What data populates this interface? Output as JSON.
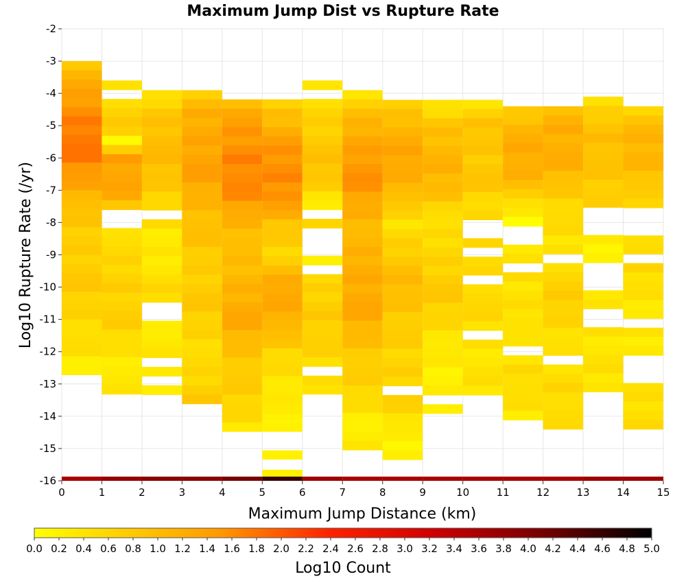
{
  "chart_data": {
    "type": "heatmap",
    "title": "Maximum Jump Dist vs Rupture Rate",
    "xlabel": "Maximum Jump Distance (km)",
    "ylabel": "Log10 Rupture Rate (/yr)",
    "xlim": [
      0,
      15
    ],
    "ylim": [
      -16,
      -2
    ],
    "x_ticks": [
      "0",
      "1",
      "2",
      "3",
      "4",
      "5",
      "6",
      "7",
      "8",
      "9",
      "10",
      "11",
      "12",
      "13",
      "14",
      "15"
    ],
    "y_ticks": [
      "-16",
      "-15",
      "-14",
      "-13",
      "-12",
      "-11",
      "-10",
      "-9",
      "-8",
      "-7",
      "-6",
      "-5",
      "-4",
      "-3",
      "-2"
    ],
    "grid": true,
    "bin_width_x": 1,
    "bin_height_y": 0.2857,
    "colorbar": {
      "label": "Log10 Count",
      "min": 0.0,
      "max": 5.0,
      "ticks": [
        "0.0",
        "0.2",
        "0.4",
        "0.6",
        "0.8",
        "1.0",
        "1.2",
        "1.4",
        "1.6",
        "1.8",
        "2.0",
        "2.2",
        "2.4",
        "2.6",
        "2.8",
        "3.0",
        "3.2",
        "3.4",
        "3.6",
        "3.8",
        "4.0",
        "4.2",
        "4.4",
        "4.6",
        "4.8",
        "5.0"
      ],
      "colors": [
        "#ffff00",
        "#ff8800",
        "#ff0000",
        "#cc0000",
        "#000000"
      ]
    },
    "columns": [
      {
        "x": 0,
        "y_top": -3.0,
        "profile": [
          [
            -3.0,
            0.8
          ],
          [
            -3.4,
            1.1
          ],
          [
            -4.0,
            1.3
          ],
          [
            -4.6,
            1.6
          ],
          [
            -5.3,
            1.8
          ],
          [
            -5.8,
            1.75
          ],
          [
            -6.5,
            1.5
          ],
          [
            -7.2,
            1.1
          ],
          [
            -7.8,
            0.8
          ],
          [
            -8.7,
            0.7
          ],
          [
            -9.6,
            0.8
          ],
          [
            -10.2,
            0.7
          ],
          [
            -11.0,
            0.6
          ],
          [
            -12.0,
            0.4
          ],
          [
            -12.7,
            0.2
          ]
        ]
      },
      {
        "x": 1,
        "y_top": -3.6,
        "profile": [
          [
            -3.6,
            0.4
          ],
          [
            -4.3,
            0.6
          ],
          [
            -5.0,
            0.8
          ],
          [
            -5.5,
            0.1
          ],
          [
            -6.0,
            1.4
          ],
          [
            -7.0,
            1.3
          ],
          [
            -7.8,
            0.6
          ],
          [
            -8.8,
            0.5
          ],
          [
            -10.0,
            0.7
          ],
          [
            -11.0,
            0.7
          ],
          [
            -12.0,
            0.4
          ],
          [
            -13.0,
            0.3
          ],
          [
            -13.3,
            0.3
          ]
        ]
      },
      {
        "x": 2,
        "y_top": -3.9,
        "profile": [
          [
            -3.9,
            0.2
          ],
          [
            -4.5,
            0.8
          ],
          [
            -5.5,
            1.0
          ],
          [
            -6.5,
            0.9
          ],
          [
            -7.5,
            0.6
          ],
          [
            -8.5,
            0.3
          ],
          [
            -9.5,
            0.4
          ],
          [
            -10.5,
            0.6
          ],
          [
            -11.5,
            0.3
          ],
          [
            -12.5,
            0.3
          ],
          [
            -13.2,
            0.4
          ]
        ]
      },
      {
        "x": 3,
        "y_top": -3.9,
        "profile": [
          [
            -3.9,
            0.6
          ],
          [
            -4.5,
            1.1
          ],
          [
            -5.5,
            1.3
          ],
          [
            -6.3,
            1.4
          ],
          [
            -7.3,
            1.1
          ],
          [
            -8.3,
            0.9
          ],
          [
            -9.3,
            0.7
          ],
          [
            -10.3,
            0.8
          ],
          [
            -11.5,
            0.6
          ],
          [
            -12.5,
            0.5
          ],
          [
            -13.6,
            0.8
          ]
        ]
      },
      {
        "x": 4,
        "y_top": -3.9,
        "profile": [
          [
            -3.9,
            0.7
          ],
          [
            -4.6,
            1.3
          ],
          [
            -5.5,
            1.5
          ],
          [
            -6.2,
            1.7
          ],
          [
            -7.0,
            1.6
          ],
          [
            -8.0,
            1.1
          ],
          [
            -9.0,
            0.9
          ],
          [
            -10.0,
            1.1
          ],
          [
            -10.8,
            1.3
          ],
          [
            -12.0,
            0.9
          ],
          [
            -13.0,
            0.7
          ],
          [
            -13.8,
            0.6
          ],
          [
            -14.4,
            0.4
          ]
        ]
      },
      {
        "x": 5,
        "y_top": -3.9,
        "profile": [
          [
            -3.9,
            0.3
          ],
          [
            -4.6,
            0.9
          ],
          [
            -5.5,
            1.4
          ],
          [
            -6.4,
            1.6
          ],
          [
            -7.2,
            1.6
          ],
          [
            -8.0,
            0.9
          ],
          [
            -9.0,
            0.6
          ],
          [
            -10.0,
            1.3
          ],
          [
            -11.0,
            1.2
          ],
          [
            -12.0,
            0.6
          ],
          [
            -13.0,
            0.4
          ],
          [
            -14.0,
            0.2
          ],
          [
            -14.4,
            0.2
          ]
        ]
      },
      {
        "x": 6,
        "y_top": -3.6,
        "profile": [
          [
            -3.6,
            0.3
          ],
          [
            -4.5,
            0.6
          ],
          [
            -5.5,
            0.8
          ],
          [
            -6.5,
            0.9
          ],
          [
            -7.5,
            0.3
          ],
          [
            -8.0,
            0.5
          ],
          [
            -9.0,
            0.3
          ],
          [
            -10.0,
            0.6
          ],
          [
            -11.0,
            0.8
          ],
          [
            -12.0,
            0.6
          ],
          [
            -12.8,
            0.4
          ],
          [
            -13.3,
            0.6
          ]
        ]
      },
      {
        "x": 7,
        "y_top": -3.9,
        "profile": [
          [
            -3.9,
            0.4
          ],
          [
            -4.6,
            0.9
          ],
          [
            -5.5,
            1.3
          ],
          [
            -6.5,
            1.6
          ],
          [
            -7.5,
            1.2
          ],
          [
            -8.5,
            1.0
          ],
          [
            -9.5,
            1.2
          ],
          [
            -10.5,
            1.3
          ],
          [
            -11.5,
            1.0
          ],
          [
            -12.5,
            0.7
          ],
          [
            -13.2,
            0.6
          ],
          [
            -14.5,
            0.2
          ],
          [
            -15.0,
            0.3
          ]
        ]
      },
      {
        "x": 8,
        "y_top": -4.2,
        "profile": [
          [
            -4.2,
            0.6
          ],
          [
            -5.0,
            1.1
          ],
          [
            -6.0,
            1.3
          ],
          [
            -7.0,
            1.1
          ],
          [
            -8.0,
            0.4
          ],
          [
            -9.0,
            0.8
          ],
          [
            -10.0,
            1.0
          ],
          [
            -11.0,
            0.8
          ],
          [
            -12.0,
            0.6
          ],
          [
            -13.0,
            0.7
          ],
          [
            -13.4,
            0.7
          ],
          [
            -14.7,
            0.2
          ],
          [
            -15.3,
            0.3
          ]
        ]
      },
      {
        "x": 9,
        "y_top": -4.2,
        "profile": [
          [
            -4.2,
            0.2
          ],
          [
            -5.0,
            0.9
          ],
          [
            -6.0,
            1.1
          ],
          [
            -7.0,
            1.0
          ],
          [
            -8.0,
            0.4
          ],
          [
            -9.0,
            0.6
          ],
          [
            -10.0,
            0.8
          ],
          [
            -11.0,
            0.6
          ],
          [
            -12.0,
            0.3
          ],
          [
            -12.8,
            0.2
          ],
          [
            -13.8,
            0.3
          ]
        ]
      },
      {
        "x": 10,
        "y_top": -4.2,
        "profile": [
          [
            -4.2,
            0.3
          ],
          [
            -5.0,
            0.9
          ],
          [
            -6.0,
            0.8
          ],
          [
            -6.5,
            0.9
          ],
          [
            -7.5,
            0.5
          ],
          [
            -9.0,
            0.6
          ],
          [
            -10.3,
            0.6
          ],
          [
            -11.0,
            0.5
          ],
          [
            -12.0,
            0.4
          ],
          [
            -13.0,
            0.4
          ],
          [
            -13.3,
            0.4
          ]
        ]
      },
      {
        "x": 11,
        "y_top": -4.4,
        "profile": [
          [
            -4.4,
            0.6
          ],
          [
            -5.0,
            1.1
          ],
          [
            -6.0,
            1.2
          ],
          [
            -6.8,
            1.1
          ],
          [
            -7.5,
            0.3
          ],
          [
            -8.0,
            0.1
          ],
          [
            -9.0,
            0.5
          ],
          [
            -10.0,
            0.4
          ],
          [
            -11.0,
            0.5
          ],
          [
            -12.0,
            0.2
          ],
          [
            -12.7,
            0.6
          ],
          [
            -14.1,
            0.3
          ]
        ]
      },
      {
        "x": 12,
        "y_top": -4.4,
        "profile": [
          [
            -4.4,
            0.9
          ],
          [
            -5.0,
            1.2
          ],
          [
            -6.0,
            1.2
          ],
          [
            -6.8,
            0.9
          ],
          [
            -7.5,
            0.6
          ],
          [
            -8.5,
            0.4
          ],
          [
            -9.5,
            0.6
          ],
          [
            -10.5,
            0.7
          ],
          [
            -11.5,
            0.5
          ],
          [
            -12.3,
            0.4
          ],
          [
            -13.3,
            0.6
          ],
          [
            -14.4,
            0.4
          ]
        ]
      },
      {
        "x": 13,
        "y_top": -4.1,
        "profile": [
          [
            -4.1,
            0.3
          ],
          [
            -4.8,
            0.8
          ],
          [
            -5.5,
            1.0
          ],
          [
            -6.5,
            0.8
          ],
          [
            -7.3,
            0.7
          ],
          [
            -8.5,
            0.2
          ],
          [
            -10.5,
            0.3
          ],
          [
            -11.0,
            0.4
          ],
          [
            -11.8,
            0.4
          ],
          [
            -13.3,
            0.4
          ]
        ]
      },
      {
        "x": 14,
        "y_top": -4.4,
        "profile": [
          [
            -4.4,
            0.6
          ],
          [
            -5.0,
            1.0
          ],
          [
            -6.0,
            1.1
          ],
          [
            -7.0,
            0.8
          ],
          [
            -7.5,
            0.4
          ],
          [
            -8.5,
            0.6
          ],
          [
            -9.5,
            0.5
          ],
          [
            -10.5,
            0.4
          ],
          [
            -11.5,
            0.3
          ],
          [
            -14.4,
            0.5
          ]
        ]
      }
    ],
    "holes": [
      [
        0,
        -12.7,
        -13.1
      ],
      [
        1,
        -4.0,
        -4.15
      ],
      [
        1,
        -7.7,
        -8.3
      ],
      [
        2,
        -7.7,
        -8.0
      ],
      [
        2,
        -10.5,
        -11.0
      ],
      [
        2,
        -12.1,
        -12.4
      ],
      [
        2,
        -12.7,
        -13.0
      ],
      [
        4,
        -4.0,
        -4.25
      ],
      [
        5,
        -4.0,
        -4.25
      ],
      [
        6,
        -4.0,
        -4.25
      ],
      [
        6,
        -7.5,
        -7.8
      ],
      [
        6,
        -8.2,
        -9.0
      ],
      [
        6,
        -9.4,
        -9.7
      ],
      [
        6,
        -12.4,
        -12.7
      ],
      [
        8,
        -13.1,
        -13.3
      ],
      [
        9,
        -13.3,
        -13.6
      ],
      [
        10,
        -7.8,
        -8.5
      ],
      [
        10,
        -8.8,
        -9.0
      ],
      [
        10,
        -9.6,
        -9.9
      ],
      [
        10,
        -11.3,
        -11.6
      ],
      [
        11,
        -8.2,
        -8.8
      ],
      [
        11,
        -9.3,
        -9.5
      ],
      [
        11,
        -11.9,
        -12.2
      ],
      [
        12,
        -9.0,
        -9.3
      ],
      [
        12,
        -12.2,
        -12.4
      ],
      [
        13,
        -7.5,
        -8.3
      ],
      [
        13,
        -9.2,
        -10.2
      ],
      [
        13,
        -10.6,
        -11.3
      ],
      [
        14,
        -7.5,
        -8.3
      ],
      [
        14,
        -9.0,
        -9.3
      ],
      [
        14,
        -11.0,
        -11.3
      ],
      [
        14,
        -12.2,
        -13.0
      ]
    ],
    "bottom_row": {
      "y": -16,
      "values": [
        3.6,
        3.8,
        3.9,
        3.9,
        4.1,
        4.6,
        3.7,
        3.6,
        3.6,
        3.6,
        3.6,
        3.6,
        3.6,
        3.7,
        3.7
      ]
    },
    "extra_cells": [
      [
        5,
        -15.2,
        0.2
      ],
      [
        5,
        -15.8,
        0.2
      ],
      [
        5,
        -14.0,
        0.2
      ],
      [
        5,
        -13.8,
        0.3
      ]
    ]
  }
}
